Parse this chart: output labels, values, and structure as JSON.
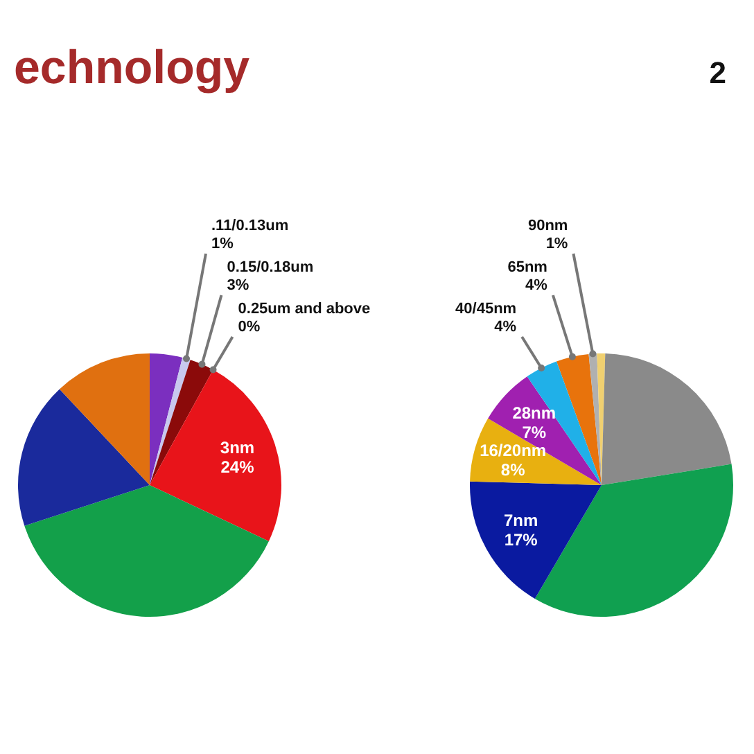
{
  "chart_data": [
    {
      "type": "pie",
      "title": "echnology",
      "categories": [
        null,
        ".11/0.13um",
        "0.15/0.18um",
        "0.25um and above",
        "3nm",
        null,
        null,
        null
      ],
      "values": [
        4,
        1,
        3,
        0,
        24,
        38,
        18,
        12
      ],
      "value_labels": [
        null,
        "1%",
        "3%",
        "0%",
        "24%",
        null,
        null,
        null
      ],
      "colors": [
        "#7b2fbf",
        "#c8c8ee",
        "#8b0a0a",
        "#b01010",
        "#e8141a",
        "#13a04a",
        "#1a2a9c",
        "#e07010"
      ]
    },
    {
      "type": "pie",
      "title": "2",
      "categories": [
        "65nm",
        "90nm",
        null,
        null,
        null,
        "7nm",
        "16/20nm",
        "28nm",
        "40/45nm"
      ],
      "values": [
        4,
        1,
        1,
        22,
        36,
        17,
        8,
        7,
        4
      ],
      "value_labels": [
        "4%",
        "1%",
        null,
        null,
        null,
        "17%",
        "8%",
        "7%",
        "4%"
      ],
      "colors": [
        "#e8730c",
        "#b0b0b0",
        "#f0d070",
        "#8a8a8a",
        "#10a050",
        "#0a1aa0",
        "#e8b010",
        "#a020b0",
        "#20b0e8"
      ]
    }
  ]
}
